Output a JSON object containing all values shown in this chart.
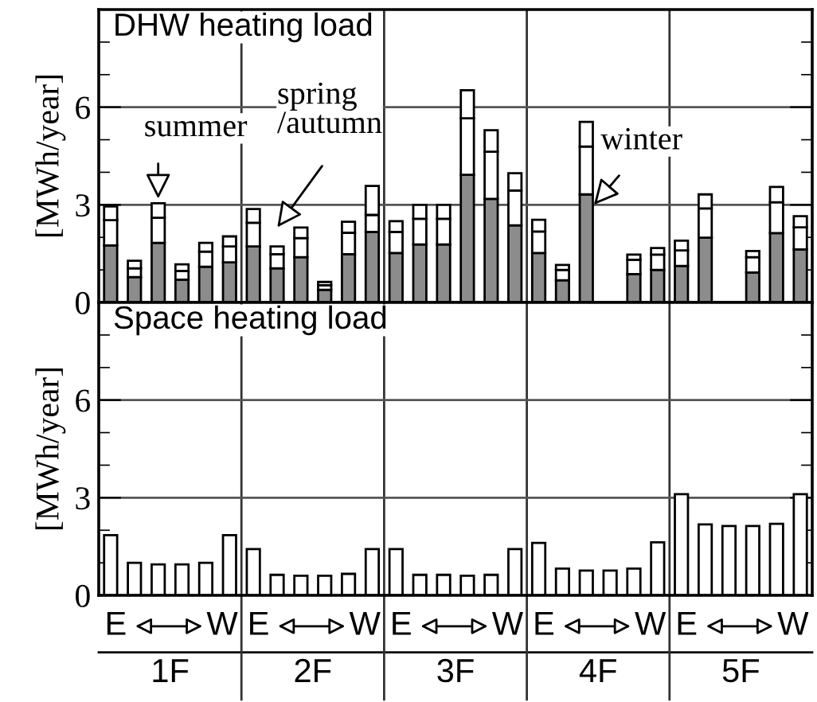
{
  "chart_data": [
    {
      "type": "bar",
      "title": "DHW heating load",
      "ylabel": "[MWh/year]",
      "stacked": true,
      "categories": [
        null,
        null,
        null,
        null,
        null,
        null,
        null,
        null,
        null,
        null,
        null,
        null,
        null,
        null,
        null,
        null,
        null,
        null,
        null,
        null,
        null,
        null,
        null,
        null,
        null,
        null,
        null,
        null,
        null,
        null
      ],
      "series": [
        {
          "color": "#8c8c8c",
          "values": [
            1.75,
            0.78,
            1.83,
            0.7,
            1.1,
            1.23,
            1.72,
            1.05,
            1.39,
            0.39,
            1.48,
            2.17,
            1.52,
            1.78,
            1.78,
            3.92,
            3.18,
            2.37,
            1.52,
            0.68,
            3.32,
            0,
            0.87,
            1.0,
            1.12,
            1.99,
            0,
            0.92,
            2.13,
            1.63
          ]
        },
        {
          "color": "#ffffff",
          "values": [
            0.78,
            0.27,
            0.77,
            0.27,
            0.46,
            0.49,
            0.73,
            0.43,
            0.59,
            0.14,
            0.66,
            0.52,
            0.65,
            0.79,
            0.79,
            1.74,
            1.45,
            1.07,
            0.66,
            0.32,
            1.47,
            0,
            0.44,
            0.47,
            0.48,
            0.9,
            0,
            0.47,
            0.95,
            0.68
          ]
        },
        {
          "color": "#ffffff",
          "values": [
            0.42,
            0.23,
            0.45,
            0.2,
            0.27,
            0.31,
            0.42,
            0.24,
            0.32,
            0.1,
            0.34,
            0.89,
            0.33,
            0.43,
            0.43,
            0.86,
            0.66,
            0.53,
            0.36,
            0.15,
            0.76,
            0,
            0.16,
            0.2,
            0.3,
            0.43,
            0,
            0.19,
            0.47,
            0.34
          ]
        }
      ],
      "ylim": [
        0,
        9
      ],
      "yticks": [
        0,
        {
          "value": 1,
          "label": null
        },
        {
          "value": 2,
          "label": null
        },
        3,
        {
          "value": 4,
          "label": null
        },
        {
          "value": 5,
          "label": null
        },
        6,
        {
          "value": 7,
          "label": null
        },
        {
          "value": 8,
          "label": null
        }
      ],
      "grid": "y",
      "tick_labels": "y",
      "annotations": [
        "summer",
        "spring\n/autumn",
        "winter"
      ]
    },
    {
      "type": "bar",
      "title": "Space heating load",
      "ylabel": "[MWh/year]",
      "categories": [
        null,
        null,
        null,
        null,
        null,
        null,
        null,
        null,
        null,
        null,
        null,
        null,
        null,
        null,
        null,
        null,
        null,
        null,
        null,
        null,
        null,
        null,
        null,
        null,
        null,
        null,
        null,
        null,
        null,
        null
      ],
      "series": [
        {
          "color": "#ffffff",
          "values": [
            1.85,
            1.0,
            0.95,
            0.95,
            1.0,
            1.85,
            1.42,
            0.63,
            0.6,
            0.6,
            0.66,
            1.42,
            1.42,
            0.63,
            0.63,
            0.6,
            0.63,
            1.42,
            1.61,
            0.82,
            0.76,
            0.76,
            0.82,
            1.63,
            3.11,
            2.18,
            2.13,
            2.13,
            2.2,
            3.11
          ]
        }
      ],
      "ylim": [
        0,
        9
      ],
      "yticks": [
        0,
        {
          "value": 1,
          "label": null
        },
        {
          "value": 2,
          "label": null
        },
        3,
        {
          "value": 4,
          "label": null
        },
        {
          "value": 5,
          "label": null
        },
        6,
        {
          "value": 7,
          "label": null
        },
        {
          "value": 8,
          "label": null
        }
      ],
      "grid": "y",
      "tick_labels": "y",
      "annotations": [
        "E",
        "W",
        "1F",
        "E",
        "W",
        "2F",
        "E",
        "W",
        "3F",
        "E",
        "W",
        "4F",
        "E",
        "W",
        "5F"
      ]
    }
  ]
}
